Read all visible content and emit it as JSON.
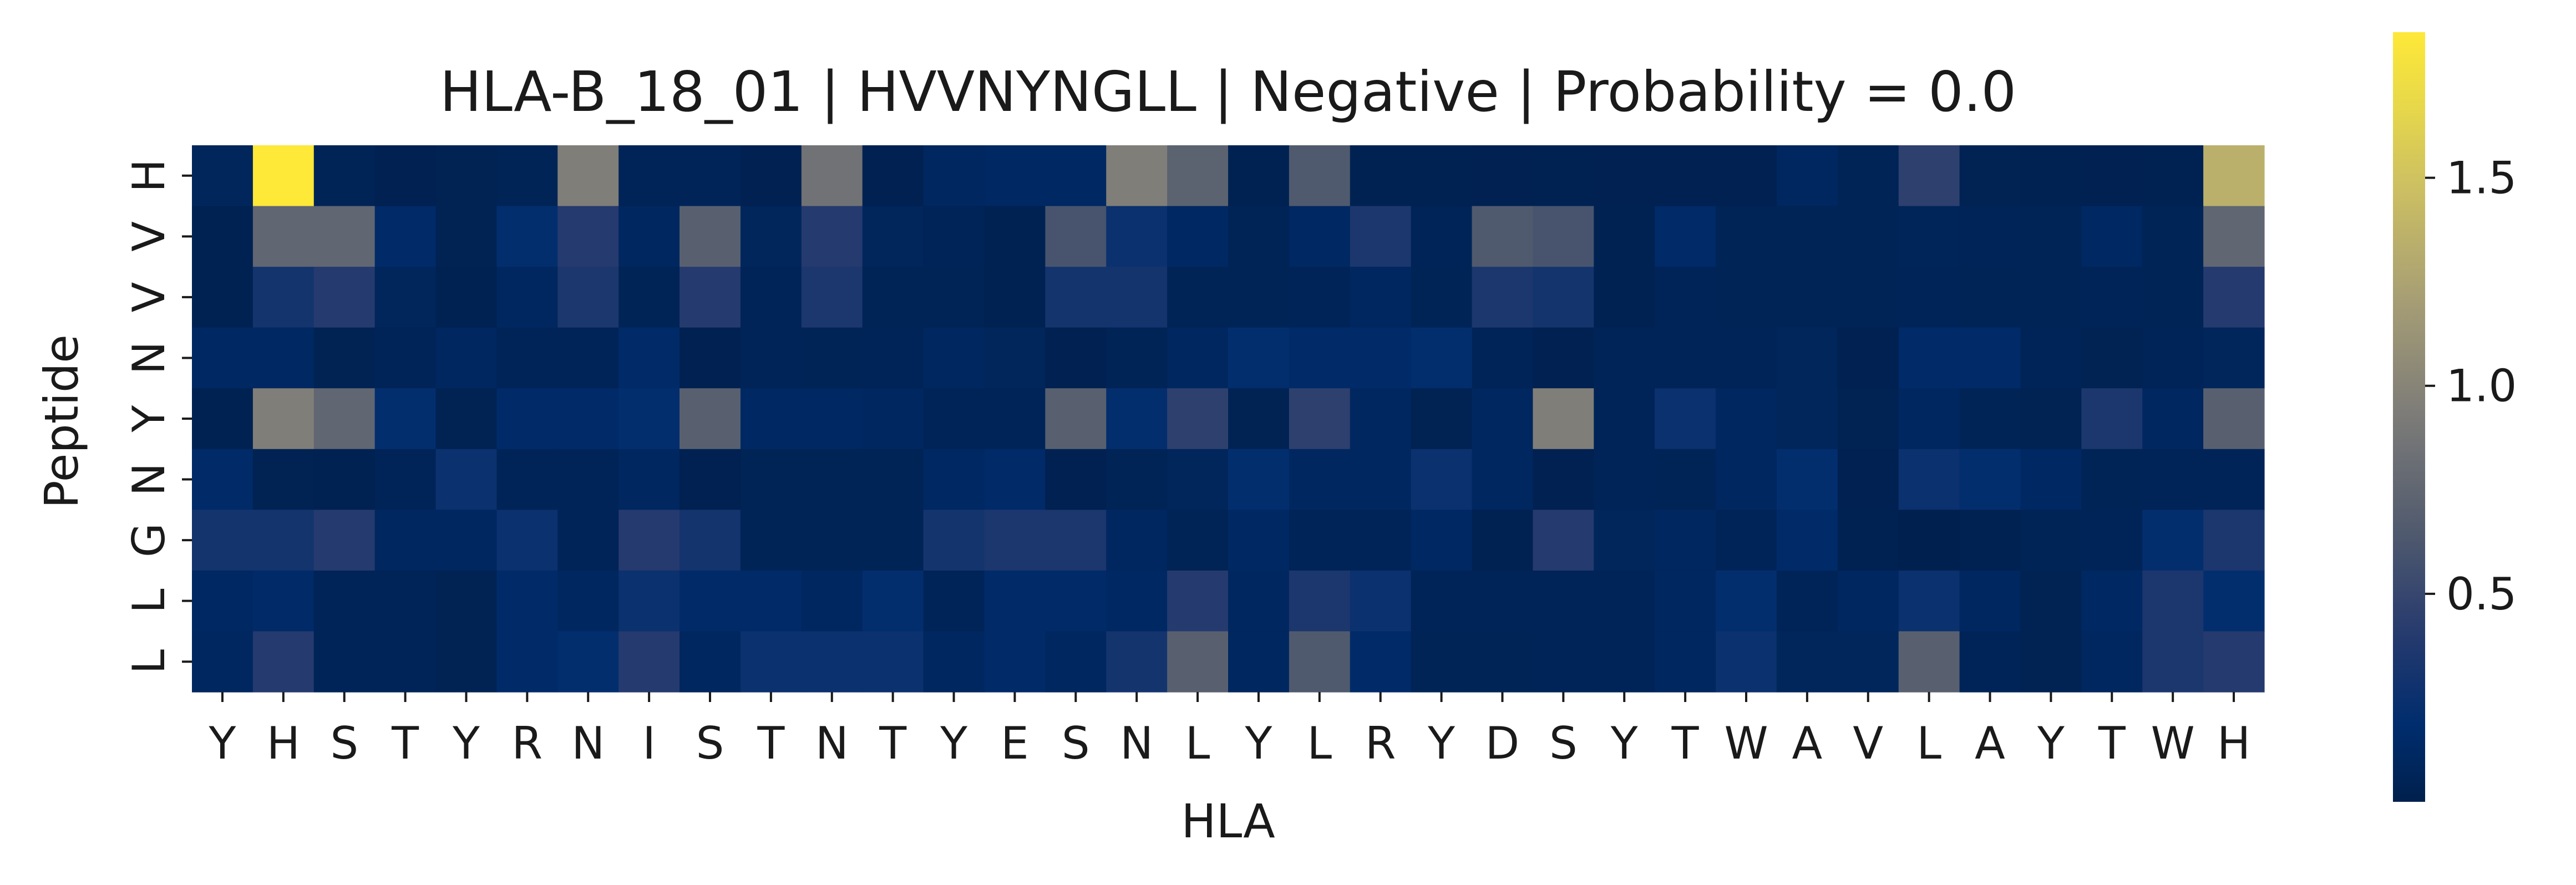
{
  "chart_data": {
    "type": "heatmap",
    "title": "HLA-B_18_01 | HVVNYNGLL | Negative | Probability = 0.0",
    "xlabel": "HLA",
    "ylabel": "Peptide",
    "x_categories": [
      "Y",
      "H",
      "S",
      "T",
      "Y",
      "R",
      "N",
      "I",
      "S",
      "T",
      "N",
      "T",
      "Y",
      "E",
      "S",
      "N",
      "L",
      "Y",
      "L",
      "R",
      "Y",
      "D",
      "S",
      "Y",
      "T",
      "W",
      "A",
      "V",
      "L",
      "A",
      "Y",
      "T",
      "W",
      "H"
    ],
    "y_categories": [
      "H",
      "V",
      "V",
      "N",
      "Y",
      "N",
      "G",
      "L",
      "L"
    ],
    "colormap": "cividis",
    "colorbar": {
      "min": 0.0,
      "max": 1.85,
      "ticks": [
        0.5,
        1.0,
        1.5
      ],
      "tick_labels": [
        "0.5",
        "1.0",
        "1.5"
      ]
    },
    "values": [
      [
        0.08,
        1.85,
        0.05,
        0.02,
        0.04,
        0.05,
        0.95,
        0.06,
        0.06,
        0.02,
        0.85,
        0.02,
        0.1,
        0.12,
        0.12,
        0.95,
        0.72,
        0.03,
        0.65,
        0.03,
        0.03,
        0.02,
        0.03,
        0.02,
        0.02,
        0.02,
        0.1,
        0.05,
        0.45,
        0.04,
        0.03,
        0.02,
        0.03,
        1.35
      ],
      [
        0.03,
        0.75,
        0.75,
        0.15,
        0.04,
        0.2,
        0.4,
        0.1,
        0.7,
        0.08,
        0.4,
        0.08,
        0.06,
        0.03,
        0.6,
        0.25,
        0.12,
        0.05,
        0.12,
        0.35,
        0.06,
        0.65,
        0.6,
        0.03,
        0.15,
        0.05,
        0.05,
        0.05,
        0.07,
        0.06,
        0.05,
        0.12,
        0.05,
        0.75
      ],
      [
        0.03,
        0.3,
        0.4,
        0.08,
        0.03,
        0.1,
        0.35,
        0.05,
        0.4,
        0.06,
        0.35,
        0.05,
        0.05,
        0.03,
        0.3,
        0.3,
        0.05,
        0.05,
        0.06,
        0.1,
        0.05,
        0.35,
        0.3,
        0.03,
        0.06,
        0.05,
        0.05,
        0.05,
        0.06,
        0.05,
        0.05,
        0.06,
        0.05,
        0.4
      ],
      [
        0.12,
        0.12,
        0.04,
        0.06,
        0.1,
        0.06,
        0.06,
        0.15,
        0.02,
        0.06,
        0.05,
        0.06,
        0.1,
        0.08,
        0.02,
        0.05,
        0.1,
        0.2,
        0.15,
        0.15,
        0.2,
        0.06,
        0.02,
        0.06,
        0.06,
        0.06,
        0.08,
        0.02,
        0.15,
        0.15,
        0.06,
        0.04,
        0.06,
        0.08
      ],
      [
        0.03,
        0.95,
        0.75,
        0.2,
        0.04,
        0.15,
        0.15,
        0.2,
        0.7,
        0.12,
        0.12,
        0.1,
        0.06,
        0.06,
        0.7,
        0.2,
        0.45,
        0.04,
        0.45,
        0.1,
        0.04,
        0.1,
        0.95,
        0.06,
        0.25,
        0.1,
        0.08,
        0.04,
        0.1,
        0.05,
        0.04,
        0.35,
        0.1,
        0.7
      ],
      [
        0.15,
        0.04,
        0.03,
        0.06,
        0.25,
        0.06,
        0.06,
        0.1,
        0.02,
        0.05,
        0.05,
        0.05,
        0.12,
        0.15,
        0.02,
        0.05,
        0.08,
        0.2,
        0.1,
        0.1,
        0.25,
        0.1,
        0.02,
        0.06,
        0.05,
        0.1,
        0.2,
        0.02,
        0.25,
        0.2,
        0.12,
        0.05,
        0.06,
        0.06
      ],
      [
        0.3,
        0.3,
        0.4,
        0.1,
        0.1,
        0.25,
        0.06,
        0.4,
        0.3,
        0.05,
        0.05,
        0.05,
        0.3,
        0.35,
        0.35,
        0.1,
        0.05,
        0.12,
        0.06,
        0.06,
        0.12,
        0.03,
        0.4,
        0.08,
        0.1,
        0.06,
        0.15,
        0.03,
        0.01,
        0.03,
        0.05,
        0.06,
        0.2,
        0.35
      ],
      [
        0.12,
        0.15,
        0.06,
        0.06,
        0.04,
        0.15,
        0.1,
        0.25,
        0.15,
        0.15,
        0.1,
        0.2,
        0.06,
        0.15,
        0.15,
        0.12,
        0.4,
        0.1,
        0.35,
        0.25,
        0.06,
        0.06,
        0.06,
        0.06,
        0.1,
        0.2,
        0.06,
        0.1,
        0.25,
        0.1,
        0.04,
        0.12,
        0.35,
        0.2
      ],
      [
        0.1,
        0.4,
        0.06,
        0.06,
        0.04,
        0.15,
        0.2,
        0.4,
        0.1,
        0.25,
        0.25,
        0.25,
        0.1,
        0.15,
        0.1,
        0.3,
        0.7,
        0.1,
        0.65,
        0.15,
        0.05,
        0.05,
        0.06,
        0.06,
        0.1,
        0.25,
        0.08,
        0.08,
        0.7,
        0.06,
        0.04,
        0.1,
        0.35,
        0.4
      ]
    ]
  }
}
